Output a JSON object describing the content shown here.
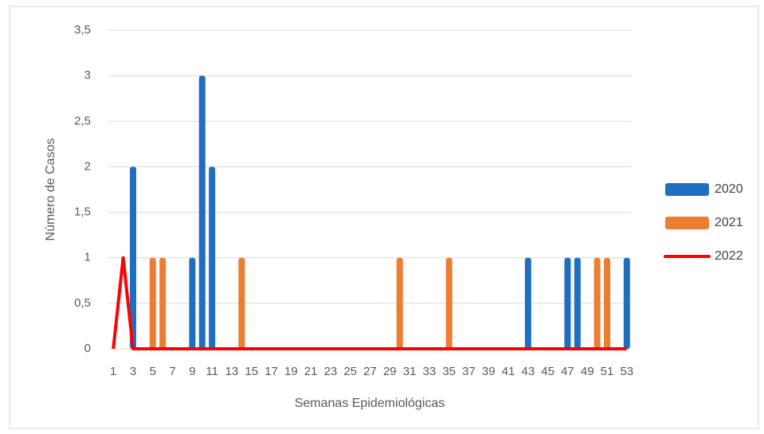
{
  "chart_data": {
    "type": "bar",
    "y_label": "Número de Casos",
    "x_label": "Semanas Epidemiológicas",
    "categories": [
      1,
      null,
      3,
      null,
      5,
      null,
      7,
      null,
      9,
      null,
      11,
      null,
      13,
      null,
      15,
      null,
      17,
      null,
      19,
      null,
      21,
      null,
      23,
      null,
      25,
      null,
      27,
      null,
      29,
      null,
      31,
      null,
      33,
      null,
      35,
      null,
      37,
      null,
      39,
      null,
      41,
      null,
      43,
      null,
      45,
      null,
      47,
      null,
      49,
      null,
      51,
      null,
      53
    ],
    "series": [
      {
        "name": "2020",
        "type": "bar",
        "color": "#1f6fc1",
        "values": [
          0,
          0,
          2,
          0,
          0,
          0,
          0,
          0,
          1,
          3,
          2,
          0,
          0,
          0,
          0,
          0,
          0,
          0,
          0,
          0,
          0,
          0,
          0,
          0,
          0,
          0,
          0,
          0,
          0,
          0,
          0,
          0,
          0,
          0,
          0,
          0,
          0,
          0,
          0,
          0,
          0,
          0,
          1,
          0,
          0,
          0,
          1,
          1,
          0,
          0,
          0,
          0,
          1
        ]
      },
      {
        "name": "2021",
        "type": "bar",
        "color": "#ed7d31",
        "values": [
          0,
          0,
          0,
          0,
          1,
          1,
          0,
          0,
          0,
          0,
          0,
          0,
          0,
          1,
          0,
          0,
          0,
          0,
          0,
          0,
          0,
          0,
          0,
          0,
          0,
          0,
          0,
          0,
          0,
          1,
          0,
          0,
          0,
          0,
          1,
          0,
          0,
          0,
          0,
          0,
          0,
          0,
          0,
          0,
          0,
          0,
          0,
          0,
          0,
          1,
          1,
          0,
          0
        ]
      },
      {
        "name": "2022",
        "type": "line",
        "color": "#ff0000",
        "values": [
          0,
          1,
          0,
          0,
          0,
          0,
          0,
          0,
          0,
          0,
          0,
          0,
          0,
          0,
          0,
          0,
          0,
          0,
          0,
          0,
          0,
          0,
          0,
          0,
          0,
          0,
          0,
          0,
          0,
          0,
          0,
          0,
          0,
          0,
          0,
          0,
          0,
          0,
          0,
          0,
          0,
          0,
          0,
          0,
          0,
          0,
          0,
          0,
          0,
          0,
          0,
          0,
          0
        ]
      }
    ],
    "ylim": [
      0,
      3.5
    ],
    "yticks": [
      0,
      {
        "value": 0.5,
        "label": "0,5"
      },
      1,
      {
        "value": 1.5,
        "label": "1,5"
      },
      2,
      {
        "value": 2.5,
        "label": "2,5"
      },
      3,
      {
        "value": 3.5,
        "label": "3,5"
      }
    ],
    "grid": true,
    "legend": "right"
  }
}
